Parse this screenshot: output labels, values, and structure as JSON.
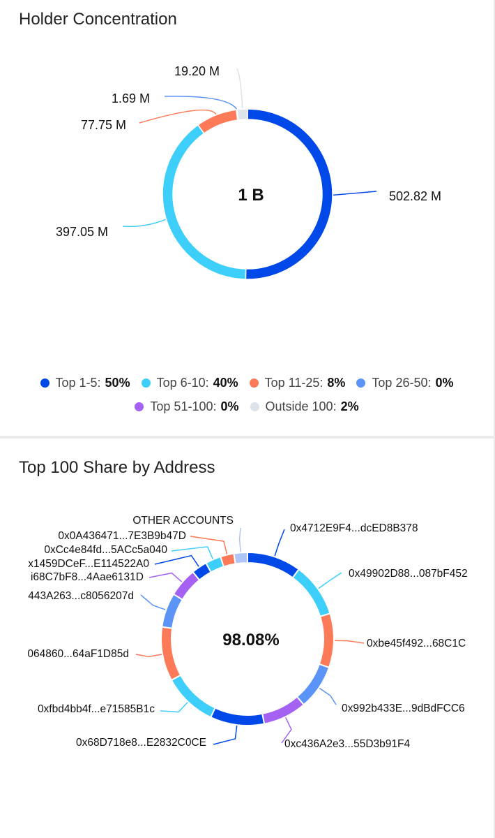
{
  "holder_concentration": {
    "title": "Holder Concentration",
    "center_label": "1 B",
    "legend": [
      {
        "label": "Top 1-5:",
        "pct": "50%",
        "color": "#0048e8"
      },
      {
        "label": "Top 6-10:",
        "pct": "40%",
        "color": "#3dcffa"
      },
      {
        "label": "Top 11-25:",
        "pct": "8%",
        "color": "#fc7a57"
      },
      {
        "label": "Top 26-50:",
        "pct": "0%",
        "color": "#5b94f6"
      },
      {
        "label": "Top 51-100:",
        "pct": "0%",
        "color": "#a561f2"
      },
      {
        "label": "Outside 100:",
        "pct": "2%",
        "color": "#dde3ea"
      }
    ]
  },
  "top100": {
    "title": "Top 100 Share by Address",
    "center_label": "98.08%"
  },
  "chart_data": [
    {
      "type": "pie",
      "variant": "donut",
      "title": "Holder Concentration",
      "center_label": "1 B",
      "categories": [
        "Top 1-5",
        "Top 6-10",
        "Top 11-25",
        "Top 26-50",
        "Top 51-100",
        "Outside 100"
      ],
      "values": [
        502.82,
        397.05,
        77.75,
        1.69,
        0.2,
        19.2
      ],
      "data_labels": [
        "502.82 M",
        "397.05 M",
        "77.75 M",
        "1.69 M",
        "",
        "19.20 M"
      ],
      "colors": [
        "#0048e8",
        "#3dcffa",
        "#fc7a57",
        "#5b94f6",
        "#a561f2",
        "#dde3ea"
      ],
      "legend_position": "bottom"
    },
    {
      "type": "pie",
      "variant": "donut",
      "title": "Top 100 Share by Address",
      "center_label": "98.08%",
      "categories": [
        "0x4712E9F4...dcED8B378",
        "0x49902D88...087bF452",
        "0xbe45f492...68C1C",
        "0x992b433E...9dBdFCC6",
        "0xc436A2e3...55D3b91F4",
        "0x68D718e8...E2832C0CE",
        "0xfbd4bb4f...e71585B1c",
        "0x064860...64aF1D85d",
        "0x443A263...c8056207d",
        "0x68C7bF8...4Aae6131D",
        "0x1459DCeF...E114522A0",
        "0xCc4e84fd...5ACc5a040",
        "0x0A436471...7E3B9b47D",
        "OTHER ACCOUNTS"
      ],
      "labels_as_printed": [
        "0x4712E9F4...dcED8B378",
        "0x49902D88...087bF452",
        "0xbe45f492...68C1C",
        "0x992b433E...9dBdFCC6",
        "0xc436A2e3...55D3b91F4",
        "0x68D718e8...E2832C0CE",
        "0xfbd4bb4f...e71585B1c",
        "064860...64aF1D85d",
        "443A263...c8056207d",
        "i68C7bF8...4Aae6131D",
        "x1459DCeF...E114522A0",
        "0xCc4e84fd...5ACc5a040",
        "0x0A436471...7E3B9b47D",
        "OTHER ACCOUNTS"
      ],
      "values": [
        10.4,
        10.4,
        10.4,
        8.6,
        8.4,
        10.4,
        10.4,
        10.4,
        6.6,
        5.6,
        3.0,
        3.0,
        2.6,
        2.6
      ],
      "colors": [
        "#0048e8",
        "#3dcffa",
        "#fc7a57",
        "#5b94f6",
        "#a561f2",
        "#0048e8",
        "#3dcffa",
        "#fc7a57",
        "#5b94f6",
        "#a561f2",
        "#0048e8",
        "#3dcffa",
        "#fc7a57",
        "#aec6f7"
      ]
    }
  ]
}
